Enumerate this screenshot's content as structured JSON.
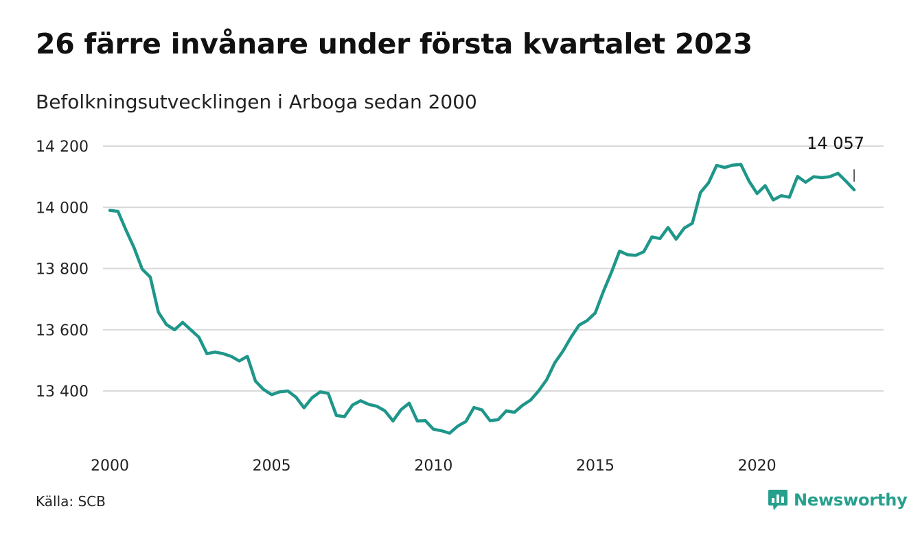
{
  "header": {
    "title": "26 färre invånare under första kvartalet 2023",
    "subtitle": "Befolkningsutvecklingen i Arboga sedan 2000"
  },
  "footer": {
    "source": "Källa: SCB",
    "brand": "Newsworthy"
  },
  "colors": {
    "line": "#1f968a",
    "grid": "#d9d9d9",
    "brand": "#26a08d"
  },
  "chart_data": {
    "type": "line",
    "title": "26 färre invånare under första kvartalet 2023",
    "subtitle": "Befolkningsutvecklingen i Arboga sedan 2000",
    "xlabel": "",
    "ylabel": "",
    "xlim": [
      2000,
      2023.5
    ],
    "ylim": [
      13220,
      14220
    ],
    "x_ticks": [
      2000,
      2005,
      2010,
      2015,
      2020
    ],
    "x_tick_labels": [
      "2000",
      "2005",
      "2010",
      "2015",
      "2020"
    ],
    "y_ticks": [
      13400,
      13600,
      13800,
      14000,
      14200
    ],
    "y_tick_labels": [
      "13 400",
      "13 600",
      "13 800",
      "14 000",
      "14 200"
    ],
    "grid": "horizontal",
    "annotation": {
      "label": "14 057",
      "x": 2023.0,
      "y": 14057
    },
    "series": [
      {
        "x": [
          2000.0,
          2000.25,
          2000.5,
          2000.75,
          2001.0,
          2001.25,
          2001.5,
          2001.75,
          2002.0,
          2002.25,
          2002.5,
          2002.75,
          2003.0,
          2003.25,
          2003.5,
          2003.75,
          2004.0,
          2004.25,
          2004.5,
          2004.75,
          2005.0,
          2005.25,
          2005.5,
          2005.75,
          2006.0,
          2006.25,
          2006.5,
          2006.75,
          2007.0,
          2007.25,
          2007.5,
          2007.75,
          2008.0,
          2008.25,
          2008.5,
          2008.75,
          2009.0,
          2009.25,
          2009.5,
          2009.75,
          2010.0,
          2010.25,
          2010.5,
          2010.75,
          2011.0,
          2011.25,
          2011.5,
          2011.75,
          2012.0,
          2012.25,
          2012.5,
          2012.75,
          2013.0,
          2013.25,
          2013.5,
          2013.75,
          2014.0,
          2014.25,
          2014.5,
          2014.75,
          2015.0,
          2015.25,
          2015.5,
          2015.75,
          2016.0,
          2016.25,
          2016.5,
          2016.75,
          2017.0,
          2017.25,
          2017.5,
          2017.75,
          2018.0,
          2018.25,
          2018.5,
          2018.75,
          2019.0,
          2019.25,
          2019.5,
          2019.75,
          2020.0,
          2020.25,
          2020.5,
          2020.75,
          2021.0,
          2021.25,
          2021.5,
          2021.75,
          2022.0,
          2022.25,
          2022.5,
          2022.75,
          2023.0
        ],
        "y": [
          13990,
          13987,
          13925,
          13868,
          13798,
          13772,
          13657,
          13617,
          13600,
          13624,
          13600,
          13576,
          13522,
          13527,
          13522,
          13513,
          13498,
          13513,
          13432,
          13405,
          13388,
          13397,
          13400,
          13380,
          13345,
          13378,
          13397,
          13392,
          13320,
          13316,
          13354,
          13368,
          13356,
          13350,
          13335,
          13302,
          13339,
          13360,
          13302,
          13303,
          13275,
          13270,
          13262,
          13285,
          13300,
          13346,
          13338,
          13303,
          13306,
          13335,
          13330,
          13353,
          13370,
          13400,
          13437,
          13492,
          13530,
          13575,
          13615,
          13630,
          13655,
          13725,
          13788,
          13857,
          13845,
          13843,
          13855,
          13903,
          13898,
          13934,
          13896,
          13932,
          13948,
          14048,
          14080,
          14137,
          14130,
          14138,
          14140,
          14086,
          14045,
          14071,
          14024,
          14038,
          14033,
          14101,
          14082,
          14100,
          14097,
          14100,
          14111,
          14085,
          14057
        ]
      }
    ]
  }
}
